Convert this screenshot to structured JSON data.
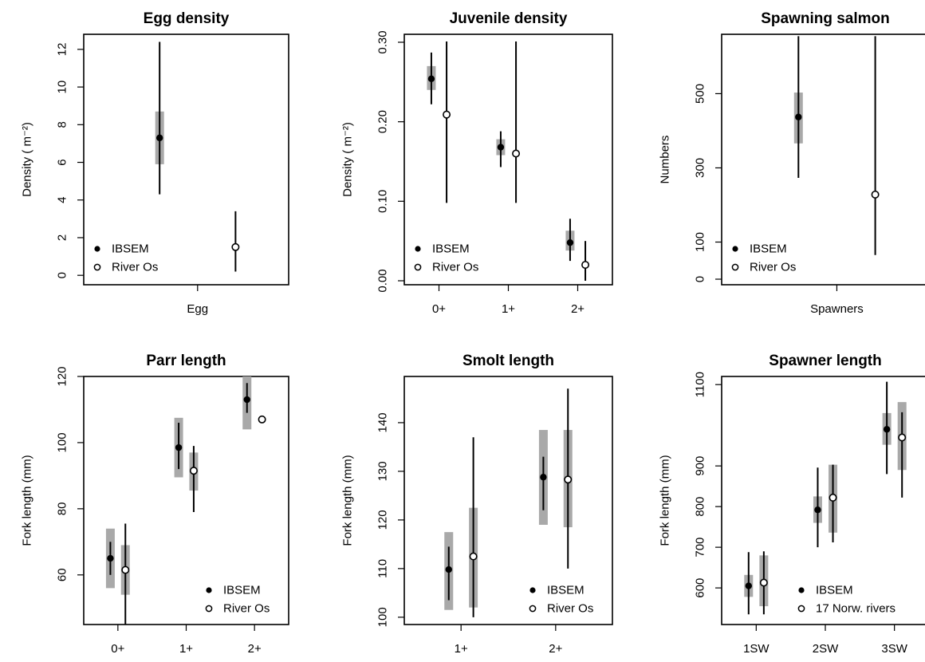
{
  "chart_data": [
    {
      "type": "scatter",
      "title": "Egg density",
      "xlabel": "Egg",
      "ylabel": "Density ( m⁻²)",
      "ylim": [
        -0.5,
        12.8
      ],
      "yticks": [
        0,
        2,
        4,
        6,
        8,
        10,
        12
      ],
      "categories": [],
      "legend_position": "bottom-left",
      "series": [
        {
          "name": "IBSEM",
          "marker": "filled",
          "points": [
            {
              "x": 1.0,
              "y": 7.3,
              "lo": 4.3,
              "hi": 12.4,
              "iqr_lo": 5.9,
              "iqr_hi": 8.7
            }
          ]
        },
        {
          "name": "River Os",
          "marker": "open",
          "points": [
            {
              "x": 1.5,
              "y": 1.5,
              "lo": 0.2,
              "hi": 3.4
            }
          ]
        }
      ]
    },
    {
      "type": "scatter",
      "title": "Juvenile density",
      "xlabel": "",
      "ylabel": "Density ( m⁻²)",
      "ylim": [
        -0.005,
        0.31
      ],
      "yticks": [
        0.0,
        0.1,
        0.2,
        0.3
      ],
      "ytick_labels": [
        "0.00",
        "0.10",
        "0.20",
        "0.30"
      ],
      "categories": [
        "0+",
        "1+",
        "2+"
      ],
      "legend_position": "bottom-left",
      "series": [
        {
          "name": "IBSEM",
          "marker": "filled",
          "points": [
            {
              "x": 1,
              "y": 0.254,
              "lo": 0.222,
              "hi": 0.287,
              "iqr_lo": 0.24,
              "iqr_hi": 0.27
            },
            {
              "x": 2,
              "y": 0.168,
              "lo": 0.143,
              "hi": 0.188,
              "iqr_lo": 0.158,
              "iqr_hi": 0.178
            },
            {
              "x": 3,
              "y": 0.048,
              "lo": 0.025,
              "hi": 0.078,
              "iqr_lo": 0.038,
              "iqr_hi": 0.063
            }
          ]
        },
        {
          "name": "River Os",
          "marker": "open",
          "points": [
            {
              "x": 1,
              "y": 0.209,
              "lo": 0.098,
              "hi": 0.301
            },
            {
              "x": 2,
              "y": 0.16,
              "lo": 0.098,
              "hi": 0.301
            },
            {
              "x": 3,
              "y": 0.02,
              "lo": 0.0,
              "hi": 0.05
            }
          ]
        }
      ]
    },
    {
      "type": "scatter",
      "title": "Spawning salmon",
      "xlabel": "Spawners",
      "ylabel": "Numbers",
      "ylim": [
        -15,
        660
      ],
      "yticks": [
        0,
        100,
        300,
        500
      ],
      "categories": [],
      "legend_position": "bottom-left",
      "series": [
        {
          "name": "IBSEM",
          "marker": "filled",
          "points": [
            {
              "x": 1.0,
              "y": 437,
              "lo": 273,
              "hi": 655,
              "iqr_lo": 366,
              "iqr_hi": 503
            }
          ]
        },
        {
          "name": "River Os",
          "marker": "open",
          "points": [
            {
              "x": 1.5,
              "y": 228,
              "lo": 65,
              "hi": 655
            }
          ]
        }
      ]
    },
    {
      "type": "scatter",
      "title": "Parr length",
      "xlabel": "",
      "ylabel": "Fork length (mm)",
      "ylim": [
        45,
        120
      ],
      "yticks": [
        60,
        80,
        100,
        120
      ],
      "categories": [
        "0+",
        "1+",
        "2+"
      ],
      "legend_position": "bottom-right",
      "series": [
        {
          "name": "IBSEM",
          "marker": "filled",
          "points": [
            {
              "x": 1,
              "y": 65,
              "lo": 60,
              "hi": 70,
              "iqr_lo": 56,
              "iqr_hi": 74
            },
            {
              "x": 2,
              "y": 98.5,
              "lo": 92,
              "hi": 106,
              "iqr_lo": 89.5,
              "iqr_hi": 107.5
            },
            {
              "x": 3,
              "y": 113,
              "lo": 109,
              "hi": 118,
              "iqr_lo": 104,
              "iqr_hi": 120
            }
          ]
        },
        {
          "name": "River Os",
          "marker": "open",
          "points": [
            {
              "x": 1,
              "y": 61.5,
              "lo": 45,
              "hi": 75.5,
              "iqr_lo": 54,
              "iqr_hi": 69
            },
            {
              "x": 2,
              "y": 91.5,
              "lo": 79,
              "hi": 99,
              "iqr_lo": 85.5,
              "iqr_hi": 97
            },
            {
              "x": 3,
              "y": 107,
              "lo": 107,
              "hi": 107
            }
          ]
        }
      ]
    },
    {
      "type": "scatter",
      "title": "Smolt length",
      "xlabel": "",
      "ylabel": "Fork length (mm)",
      "ylim": [
        98.5,
        149.5
      ],
      "yticks": [
        100,
        110,
        120,
        130,
        140
      ],
      "categories": [
        "1+",
        "2+"
      ],
      "legend_position": "bottom-right",
      "series": [
        {
          "name": "IBSEM",
          "marker": "filled",
          "points": [
            {
              "x": 1,
              "y": 109.8,
              "lo": 103.5,
              "hi": 114.5,
              "iqr_lo": 101.5,
              "iqr_hi": 117.5
            },
            {
              "x": 2,
              "y": 128.8,
              "lo": 122,
              "hi": 133,
              "iqr_lo": 119,
              "iqr_hi": 138.5
            }
          ]
        },
        {
          "name": "River Os",
          "marker": "open",
          "points": [
            {
              "x": 1,
              "y": 112.5,
              "lo": 100,
              "hi": 137,
              "iqr_lo": 102,
              "iqr_hi": 122.5
            },
            {
              "x": 2,
              "y": 128.3,
              "lo": 110,
              "hi": 147,
              "iqr_lo": 118.5,
              "iqr_hi": 138.5
            }
          ]
        }
      ]
    },
    {
      "type": "scatter",
      "title": "Spawner length",
      "xlabel": "",
      "ylabel": "Fork length (mm)",
      "ylim": [
        510,
        1120
      ],
      "yticks": [
        600,
        700,
        800,
        900,
        1100
      ],
      "categories": [
        "1SW",
        "2SW",
        "3SW"
      ],
      "legend_position": "bottom-right",
      "series": [
        {
          "name": "IBSEM",
          "marker": "filled",
          "points": [
            {
              "x": 1,
              "y": 605,
              "lo": 535,
              "hi": 688,
              "iqr_lo": 578,
              "iqr_hi": 632
            },
            {
              "x": 2,
              "y": 792,
              "lo": 700,
              "hi": 896,
              "iqr_lo": 760,
              "iqr_hi": 825
            },
            {
              "x": 3,
              "y": 990,
              "lo": 880,
              "hi": 1107,
              "iqr_lo": 952,
              "iqr_hi": 1030
            }
          ]
        },
        {
          "name": "17 Norw. rivers",
          "marker": "open",
          "points": [
            {
              "x": 1,
              "y": 613,
              "lo": 535,
              "hi": 690,
              "iqr_lo": 555,
              "iqr_hi": 680
            },
            {
              "x": 2,
              "y": 822,
              "lo": 712,
              "hi": 903,
              "iqr_lo": 736,
              "iqr_hi": 903
            },
            {
              "x": 3,
              "y": 970,
              "lo": 822,
              "hi": 1032,
              "iqr_lo": 890,
              "iqr_hi": 1057
            }
          ]
        }
      ]
    }
  ]
}
